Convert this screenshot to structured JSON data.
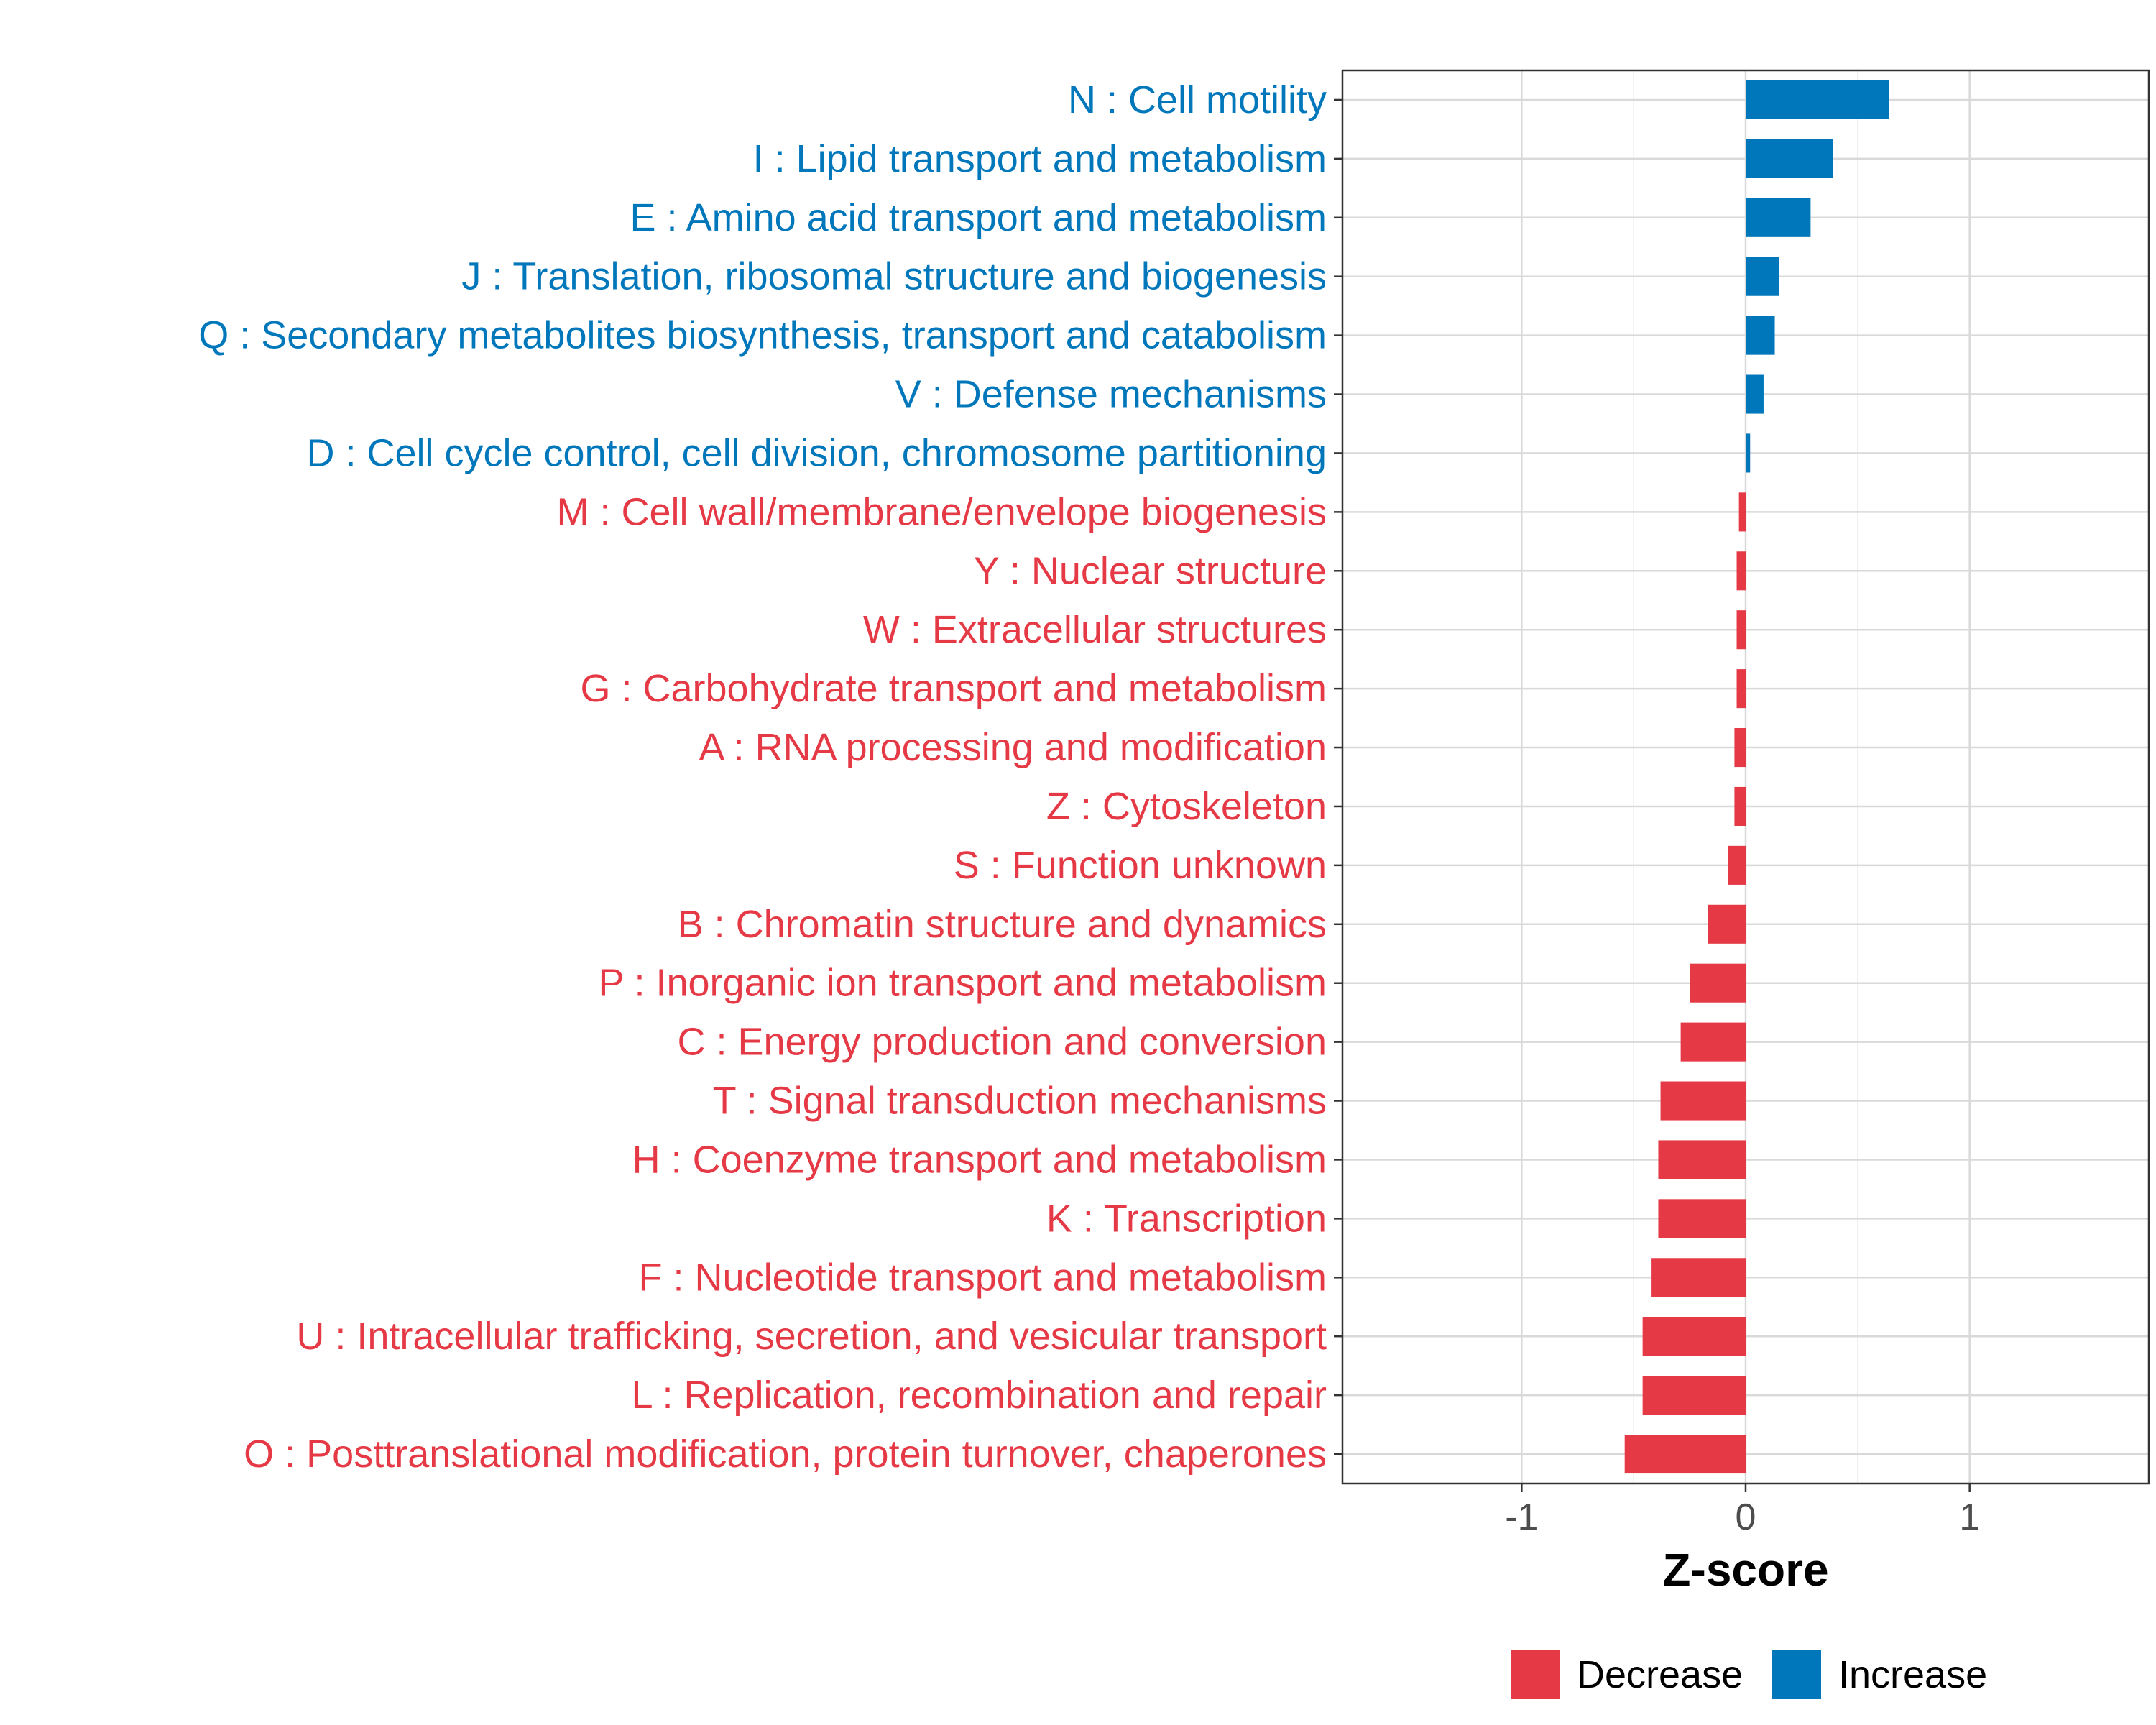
{
  "chart_data": {
    "type": "bar",
    "orientation": "horizontal",
    "xlabel": "Z-score",
    "xlim": [
      -1.8,
      1.8
    ],
    "xticks": [
      -1,
      0,
      1
    ],
    "xtick_labels": [
      "-1",
      "0",
      "1"
    ],
    "grid": true,
    "legend_position": "bottom",
    "colors": {
      "Decrease": "#e63946",
      "Increase": "#0077bb"
    },
    "legend": [
      {
        "label": "Decrease",
        "color": "#e63946"
      },
      {
        "label": "Increase",
        "color": "#0077bb"
      }
    ],
    "categories": [
      {
        "label": "N : Cell motility",
        "value": 0.64,
        "group": "Increase"
      },
      {
        "label": "I : Lipid transport and metabolism",
        "value": 0.39,
        "group": "Increase"
      },
      {
        "label": "E : Amino acid transport and metabolism",
        "value": 0.29,
        "group": "Increase"
      },
      {
        "label": "J : Translation, ribosomal structure and biogenesis",
        "value": 0.15,
        "group": "Increase"
      },
      {
        "label": "Q : Secondary metabolites biosynthesis, transport and catabolism",
        "value": 0.13,
        "group": "Increase"
      },
      {
        "label": "V : Defense mechanisms",
        "value": 0.08,
        "group": "Increase"
      },
      {
        "label": "D : Cell cycle control, cell division, chromosome partitioning",
        "value": 0.02,
        "group": "Increase"
      },
      {
        "label": "M : Cell wall/membrane/envelope biogenesis",
        "value": -0.03,
        "group": "Decrease"
      },
      {
        "label": "Y : Nuclear structure",
        "value": -0.04,
        "group": "Decrease"
      },
      {
        "label": "W : Extracellular structures",
        "value": -0.04,
        "group": "Decrease"
      },
      {
        "label": "G : Carbohydrate transport and metabolism",
        "value": -0.04,
        "group": "Decrease"
      },
      {
        "label": "A : RNA processing and modification",
        "value": -0.05,
        "group": "Decrease"
      },
      {
        "label": "Z : Cytoskeleton",
        "value": -0.05,
        "group": "Decrease"
      },
      {
        "label": "S : Function unknown",
        "value": -0.08,
        "group": "Decrease"
      },
      {
        "label": "B : Chromatin structure and dynamics",
        "value": -0.17,
        "group": "Decrease"
      },
      {
        "label": "P : Inorganic ion transport and metabolism",
        "value": -0.25,
        "group": "Decrease"
      },
      {
        "label": "C : Energy production and conversion",
        "value": -0.29,
        "group": "Decrease"
      },
      {
        "label": "T : Signal transduction mechanisms",
        "value": -0.38,
        "group": "Decrease"
      },
      {
        "label": "H : Coenzyme transport and metabolism",
        "value": -0.39,
        "group": "Decrease"
      },
      {
        "label": "K : Transcription",
        "value": -0.39,
        "group": "Decrease"
      },
      {
        "label": "F : Nucleotide transport and metabolism",
        "value": -0.42,
        "group": "Decrease"
      },
      {
        "label": "U : Intracellular trafficking, secretion, and vesicular transport",
        "value": -0.46,
        "group": "Decrease"
      },
      {
        "label": "L : Replication, recombination and repair",
        "value": -0.46,
        "group": "Decrease"
      },
      {
        "label": "O : Posttranslational modification, protein turnover, chaperones",
        "value": -0.54,
        "group": "Decrease"
      }
    ]
  }
}
